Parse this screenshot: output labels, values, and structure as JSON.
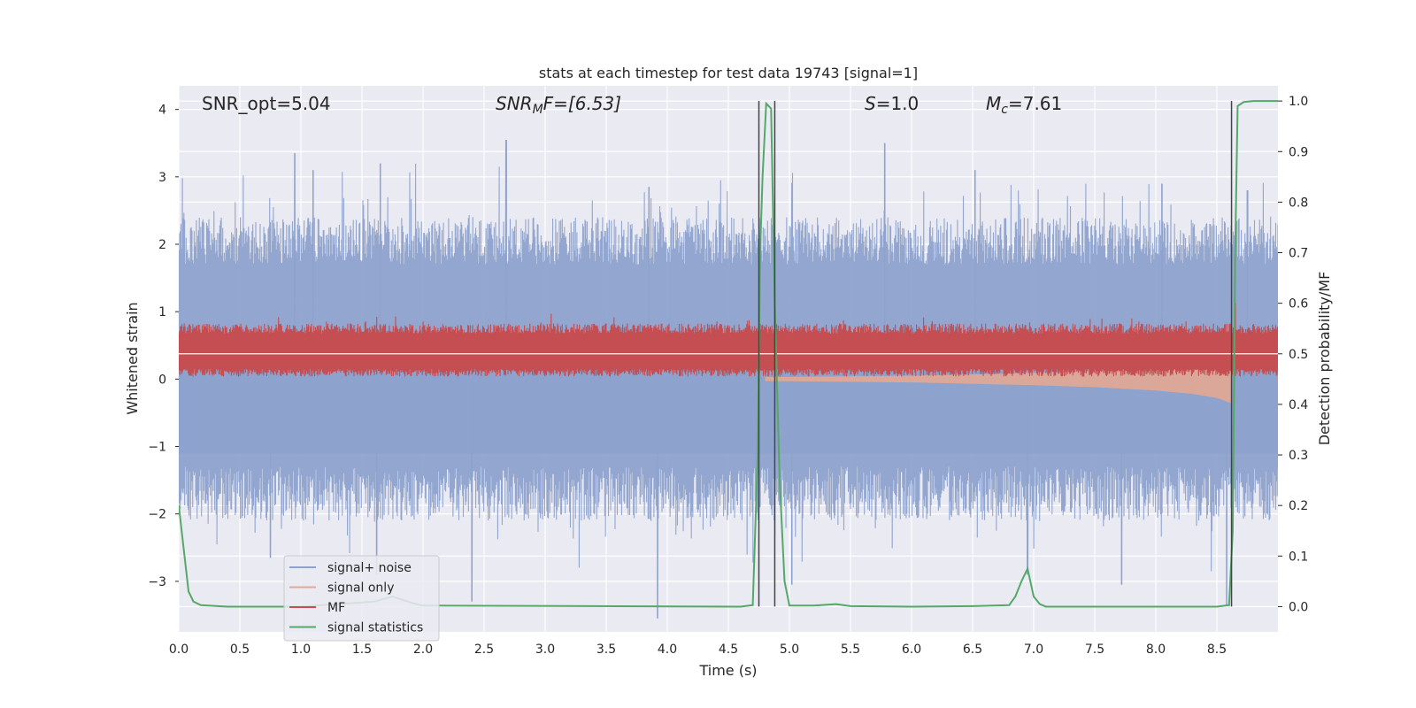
{
  "chart_data": {
    "type": "line",
    "title": "stats at each timestep for test data 19743 [signal=1]",
    "xlabel": "Time (s)",
    "ylabel": "Whitened strain",
    "ylabel_right": "Detection probability/MF",
    "xlim": [
      0.0,
      9.0
    ],
    "ylim": [
      -3.75,
      4.35
    ],
    "ylim_right": [
      -0.05,
      1.03
    ],
    "grid": true,
    "legend_position": "lower-left",
    "x_ticks": [
      "0.0",
      "0.5",
      "1.0",
      "1.5",
      "2.0",
      "2.5",
      "3.0",
      "3.5",
      "4.0",
      "4.5",
      "5.0",
      "5.5",
      "6.0",
      "6.5",
      "7.0",
      "7.5",
      "8.0",
      "8.5"
    ],
    "y_ticks": [
      "4",
      "3",
      "2",
      "1",
      "0",
      "−1",
      "−2",
      "−3"
    ],
    "y_ticks_right": [
      "1.0",
      "0.9",
      "0.8",
      "0.7",
      "0.6",
      "0.5",
      "0.4",
      "0.3",
      "0.2",
      "0.1",
      "0.0"
    ],
    "annotations": {
      "snr_opt": "SNR_opt=5.04",
      "snr_mf_prefix": "SNR",
      "snr_mf_sub": "M",
      "snr_mf_suffix": "F=[6.53]",
      "s_prefix": "S",
      "s_suffix": "=1.0",
      "mc_prefix": "M",
      "mc_sub": "c",
      "mc_suffix": "=7.61"
    },
    "vertical_markers": [
      4.75,
      4.88,
      8.62
    ],
    "series": [
      {
        "name": "signal+ noise",
        "color": "#8da2cc",
        "axis": "left",
        "kind": "noise_band",
        "typical_range": [
          -1.3,
          1.7
        ],
        "peaks_up": [
          [
            0.95,
            3.35
          ],
          [
            1.1,
            3.1
          ],
          [
            1.65,
            3.2
          ],
          [
            2.68,
            3.55
          ],
          [
            3.85,
            2.85
          ],
          [
            5.78,
            3.5
          ],
          [
            6.52,
            3.1
          ],
          [
            8.05,
            2.9
          ],
          [
            8.75,
            2.8
          ]
        ],
        "peaks_down": [
          [
            0.75,
            -2.65
          ],
          [
            1.62,
            -2.9
          ],
          [
            2.4,
            -3.3
          ],
          [
            3.92,
            -3.55
          ],
          [
            5.02,
            -3.05
          ],
          [
            6.95,
            -2.9
          ],
          [
            7.72,
            -3.05
          ],
          [
            8.58,
            -3.35
          ]
        ]
      },
      {
        "name": "signal only",
        "color": "#e8a88f",
        "axis": "left",
        "kind": "chirp",
        "x": [
          4.8,
          5.5,
          6.0,
          6.5,
          7.0,
          7.5,
          8.0,
          8.3,
          8.5,
          8.62
        ],
        "amplitude": [
          0.03,
          0.04,
          0.05,
          0.07,
          0.09,
          0.12,
          0.17,
          0.22,
          0.28,
          0.36
        ]
      },
      {
        "name": "MF",
        "color": "#c44e52",
        "axis": "right",
        "kind": "noise_band",
        "center": 0.5,
        "typical_range": [
          0.47,
          0.54
        ],
        "peaks_up": [
          [
            8.65,
            0.6
          ]
        ]
      },
      {
        "name": "signal statistics",
        "color": "#55a868",
        "axis": "right",
        "x": [
          0.0,
          0.08,
          0.12,
          0.18,
          0.4,
          1.0,
          1.6,
          1.75,
          1.9,
          2.0,
          4.6,
          4.7,
          4.74,
          4.76,
          4.78,
          4.81,
          4.85,
          4.88,
          4.92,
          4.96,
          5.0,
          5.2,
          5.38,
          5.5,
          6.0,
          6.5,
          6.8,
          6.85,
          6.9,
          6.95,
          7.0,
          7.05,
          7.1,
          7.3,
          8.0,
          8.5,
          8.6,
          8.63,
          8.65,
          8.67,
          8.72,
          8.8,
          9.0
        ],
        "y": [
          0.2,
          0.03,
          0.01,
          0.003,
          0.0,
          0.0,
          0.01,
          0.02,
          0.008,
          0.002,
          0.0,
          0.003,
          0.3,
          0.7,
          0.85,
          0.995,
          0.985,
          0.6,
          0.25,
          0.05,
          0.002,
          0.002,
          0.005,
          0.001,
          0.0,
          0.001,
          0.003,
          0.02,
          0.05,
          0.075,
          0.02,
          0.005,
          0.0,
          0.0,
          0.0,
          0.0,
          0.003,
          0.15,
          0.7,
          0.99,
          0.998,
          1.0,
          1.0
        ]
      }
    ]
  }
}
